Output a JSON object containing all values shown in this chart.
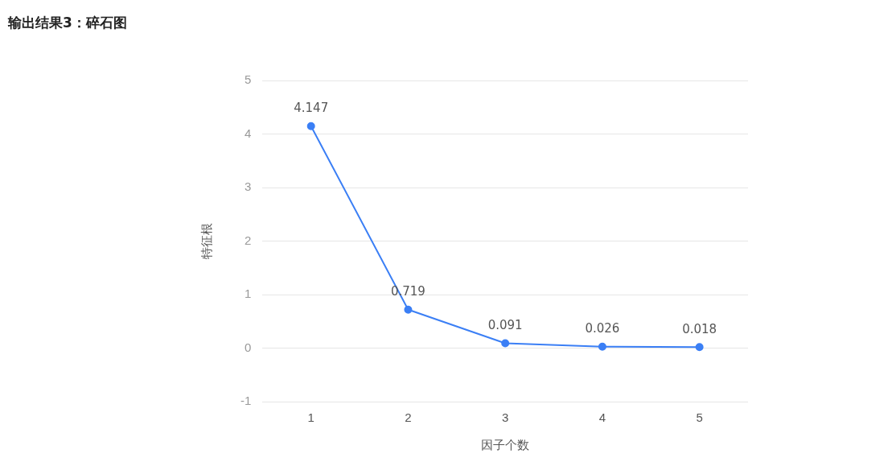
{
  "chart_data": {
    "type": "line",
    "title": "输出结果3：碎石图",
    "xlabel": "因子个数",
    "ylabel": "特征根",
    "categories": [
      "1",
      "2",
      "3",
      "4",
      "5"
    ],
    "series": [
      {
        "color": "#3b7ff5",
        "values": [
          4.147,
          0.719,
          0.091,
          0.026,
          0.018
        ]
      }
    ],
    "ylim": [
      -1,
      5
    ],
    "yticks": [
      -1,
      0,
      1,
      2,
      3,
      4,
      5
    ],
    "grid": "y",
    "legend": false,
    "marker": "circle",
    "data_labels": true
  }
}
